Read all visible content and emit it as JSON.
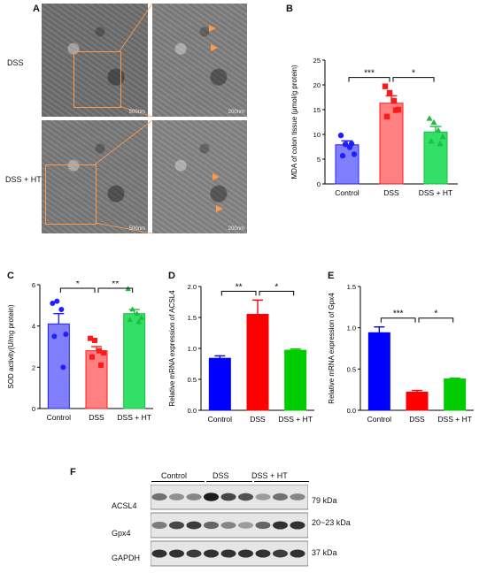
{
  "panels": {
    "A": "A",
    "B": "B",
    "C": "C",
    "D": "D",
    "E": "E",
    "F": "F"
  },
  "panel_a": {
    "row_labels": [
      "DSS",
      "DSS + HT"
    ],
    "scale_bars": [
      "500nm",
      "200nm",
      "500nm",
      "200nm"
    ]
  },
  "panel_f": {
    "groups": [
      "Control",
      "DSS",
      "DSS + HT"
    ],
    "bands": [
      "ACSL4",
      "Gpx4",
      "GAPDH"
    ],
    "sizes": [
      "79 kDa",
      "20~23 kDa",
      "37 kDa"
    ]
  },
  "chart_data": [
    {
      "id": "B",
      "type": "bar",
      "categories": [
        "Control",
        "DSS",
        "DSS + HT"
      ],
      "values": [
        7.9,
        16.3,
        10.5
      ],
      "errors": [
        0.8,
        1.5,
        1.1
      ],
      "points": [
        [
          9.8,
          8.0,
          7.4,
          6.0,
          5.7,
          8.1
        ],
        [
          19.7,
          18.4,
          16.8,
          15.0,
          13.6,
          14.9
        ],
        [
          13.2,
          12.4,
          10.8,
          9.5,
          8.6,
          8.1
        ]
      ],
      "ylabel": "MDA of colon tissue (μmol/g protein)",
      "ylim": [
        0,
        25
      ],
      "yticks": [
        0,
        5,
        10,
        15,
        20,
        25
      ],
      "colors": [
        "#8080ff",
        "#ff8080",
        "#33e066"
      ],
      "point_colors": [
        "#2020ff",
        "#ff1a1a",
        "#22bb44"
      ],
      "sig": [
        {
          "from": 0,
          "to": 1,
          "label": "***"
        },
        {
          "from": 1,
          "to": 2,
          "label": "*"
        }
      ]
    },
    {
      "id": "C",
      "type": "bar",
      "categories": [
        "Control",
        "DSS",
        "DSS + HT"
      ],
      "values": [
        4.1,
        2.8,
        4.6
      ],
      "errors": [
        0.5,
        0.2,
        0.2
      ],
      "points": [
        [
          5.1,
          5.2,
          4.8,
          3.6,
          3.5,
          2.0
        ],
        [
          3.4,
          3.3,
          2.8,
          2.7,
          2.5,
          2.1
        ],
        [
          5.8,
          4.8,
          4.6,
          4.4,
          4.3,
          4.2
        ]
      ],
      "ylabel": "SOD activity(U/mg protein)",
      "ylim": [
        0,
        6
      ],
      "yticks": [
        0,
        2,
        4,
        6
      ],
      "colors": [
        "#8080ff",
        "#ff8080",
        "#33e066"
      ],
      "point_colors": [
        "#2020ff",
        "#ff1a1a",
        "#22bb44"
      ],
      "sig": [
        {
          "from": 0,
          "to": 1,
          "label": "*"
        },
        {
          "from": 1,
          "to": 2,
          "label": "**"
        }
      ]
    },
    {
      "id": "D",
      "type": "bar",
      "categories": [
        "Control",
        "DSS",
        "DSS + HT"
      ],
      "values": [
        0.84,
        1.55,
        0.97
      ],
      "errors": [
        0.04,
        0.23,
        0.02
      ],
      "ylabel": "Relative mRNA expression of ACSL4",
      "ylim": [
        0,
        2.0
      ],
      "yticks": [
        0.0,
        0.5,
        1.0,
        1.5,
        2.0
      ],
      "colors": [
        "#0000ff",
        "#ff0000",
        "#00cc00"
      ],
      "sig": [
        {
          "from": 0,
          "to": 1,
          "label": "**"
        },
        {
          "from": 1,
          "to": 2,
          "label": "*"
        }
      ]
    },
    {
      "id": "E",
      "type": "bar",
      "categories": [
        "Control",
        "DSS",
        "DSS + HT"
      ],
      "values": [
        0.94,
        0.22,
        0.38
      ],
      "errors": [
        0.07,
        0.02,
        0.01
      ],
      "ylabel": "Relative mRNA expression of Gpx4",
      "ylim": [
        0,
        1.5
      ],
      "yticks": [
        0.0,
        0.5,
        1.0,
        1.5
      ],
      "colors": [
        "#0000ff",
        "#ff0000",
        "#00cc00"
      ],
      "sig": [
        {
          "from": 0,
          "to": 1,
          "label": "***"
        },
        {
          "from": 1,
          "to": 2,
          "label": "*"
        }
      ]
    }
  ]
}
